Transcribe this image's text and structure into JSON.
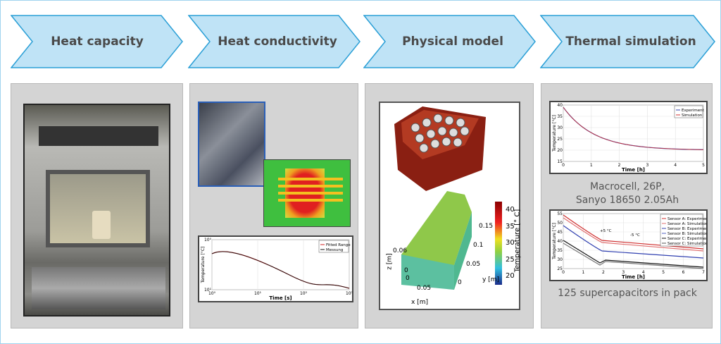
{
  "steps": [
    {
      "label": "Heat capacity"
    },
    {
      "label": "Heat conductivity"
    },
    {
      "label": "Physical model"
    },
    {
      "label": "Thermal simulation"
    }
  ],
  "colors": {
    "chevron_fill": "#bfe3f6",
    "chevron_border": "#2a9fd6",
    "panel": "#d4d4d4"
  },
  "heat_conductivity": {
    "chart": {
      "ylabel": "Temperature [°C]",
      "xlabel": "Time [s]",
      "legend": [
        "Fitted Range",
        "Messung"
      ],
      "xticks": [
        "10⁰",
        "10¹",
        "10²",
        "10³"
      ],
      "yticks": [
        "10¹",
        "10⁰"
      ]
    }
  },
  "physical_model": {
    "colorbar": {
      "label": "Temperature [° C]",
      "ticks": [
        "40",
        "35",
        "30",
        "25",
        "20"
      ]
    },
    "axes": {
      "x_label": "x [m]",
      "y_label": "y [m]",
      "z_label": "z [m]",
      "x_ticks": [
        "0",
        "0.05"
      ],
      "y_ticks": [
        "0",
        "0.05",
        "0.1",
        "0.15"
      ],
      "z_ticks": [
        "0",
        "0.06"
      ]
    }
  },
  "thermal_simulation": {
    "chart1": {
      "ylabel": "Temperature [°C]",
      "xlabel": "Time [h]",
      "legend": [
        "Experiment",
        "Simulation"
      ],
      "xticks": [
        "0",
        "1",
        "2",
        "3",
        "4",
        "5"
      ],
      "yticks": [
        "15",
        "20",
        "25",
        "30",
        "35",
        "40"
      ]
    },
    "caption1": [
      "Macrocell, 26P,",
      "Sanyo 18650 2.05Ah"
    ],
    "chart2": {
      "ylabel": "Temperature [°C]",
      "xlabel": "Time [h]",
      "legend": [
        "Sensor A: Experiment",
        "Sensor A: Simulation",
        "Sensor B: Experiment",
        "Sensor B: Simulation",
        "Sensor C: Experiment",
        "Sensor C: Simulation"
      ],
      "xticks": [
        "0",
        "1",
        "2",
        "3",
        "4",
        "5",
        "6",
        "7"
      ],
      "yticks": [
        "25",
        "30",
        "35",
        "40",
        "45",
        "50",
        "55"
      ],
      "annotations": [
        "+5 °C",
        "-5 °C"
      ]
    },
    "caption2": "125 supercapacitors in pack"
  }
}
